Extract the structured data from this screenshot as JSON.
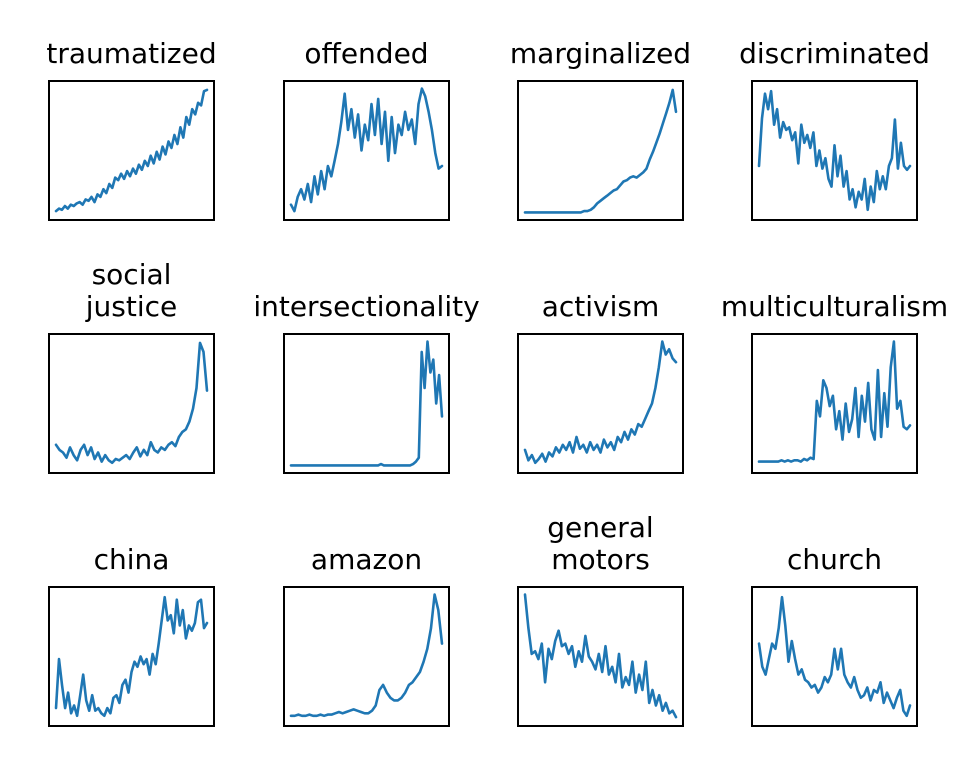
{
  "line_color": "#1f77b4",
  "chart_data": [
    {
      "type": "line",
      "title": [
        "traumatized"
      ],
      "ylim": [
        0,
        1
      ],
      "values": [
        0.03,
        0.05,
        0.04,
        0.07,
        0.05,
        0.08,
        0.07,
        0.09,
        0.1,
        0.08,
        0.12,
        0.11,
        0.14,
        0.1,
        0.16,
        0.14,
        0.2,
        0.17,
        0.24,
        0.21,
        0.29,
        0.27,
        0.32,
        0.28,
        0.34,
        0.3,
        0.36,
        0.32,
        0.39,
        0.35,
        0.42,
        0.38,
        0.46,
        0.4,
        0.49,
        0.43,
        0.53,
        0.47,
        0.57,
        0.52,
        0.62,
        0.55,
        0.68,
        0.6,
        0.76,
        0.7,
        0.82,
        0.78,
        0.87,
        0.85,
        0.96,
        0.97
      ]
    },
    {
      "type": "line",
      "title": [
        "offended"
      ],
      "ylim": [
        0,
        1
      ],
      "values": [
        0.08,
        0.03,
        0.14,
        0.2,
        0.12,
        0.24,
        0.1,
        0.3,
        0.16,
        0.34,
        0.2,
        0.38,
        0.3,
        0.42,
        0.55,
        0.72,
        0.94,
        0.66,
        0.82,
        0.6,
        0.78,
        0.5,
        0.7,
        0.58,
        0.86,
        0.62,
        0.9,
        0.55,
        0.8,
        0.42,
        0.76,
        0.48,
        0.7,
        0.62,
        0.8,
        0.66,
        0.74,
        0.55,
        0.86,
        0.98,
        0.92,
        0.8,
        0.66,
        0.48,
        0.36,
        0.38
      ]
    },
    {
      "type": "line",
      "title": [
        "marginalized"
      ],
      "ylim": [
        0,
        1
      ],
      "values": [
        0.02,
        0.02,
        0.02,
        0.02,
        0.02,
        0.02,
        0.02,
        0.02,
        0.02,
        0.02,
        0.02,
        0.02,
        0.02,
        0.02,
        0.02,
        0.02,
        0.02,
        0.02,
        0.03,
        0.03,
        0.04,
        0.06,
        0.09,
        0.11,
        0.13,
        0.15,
        0.17,
        0.19,
        0.2,
        0.23,
        0.26,
        0.27,
        0.29,
        0.3,
        0.29,
        0.31,
        0.33,
        0.36,
        0.43,
        0.49,
        0.56,
        0.63,
        0.71,
        0.79,
        0.87,
        0.97,
        0.8
      ]
    },
    {
      "type": "line",
      "title": [
        "discriminated"
      ],
      "ylim": [
        0,
        1
      ],
      "values": [
        0.38,
        0.75,
        0.94,
        0.82,
        0.96,
        0.7,
        0.82,
        0.6,
        0.72,
        0.66,
        0.68,
        0.58,
        0.64,
        0.4,
        0.7,
        0.56,
        0.62,
        0.52,
        0.64,
        0.38,
        0.5,
        0.36,
        0.44,
        0.28,
        0.22,
        0.54,
        0.3,
        0.46,
        0.22,
        0.34,
        0.12,
        0.2,
        0.06,
        0.18,
        0.12,
        0.28,
        0.04,
        0.22,
        0.1,
        0.34,
        0.2,
        0.3,
        0.2,
        0.38,
        0.44,
        0.74,
        0.36,
        0.56,
        0.38,
        0.35,
        0.38
      ]
    },
    {
      "type": "line",
      "title": [
        "social",
        "justice"
      ],
      "ylim": [
        0,
        1
      ],
      "values": [
        0.18,
        0.14,
        0.12,
        0.08,
        0.16,
        0.1,
        0.06,
        0.14,
        0.18,
        0.1,
        0.16,
        0.07,
        0.12,
        0.05,
        0.1,
        0.06,
        0.04,
        0.07,
        0.06,
        0.08,
        0.1,
        0.07,
        0.12,
        0.16,
        0.09,
        0.14,
        0.1,
        0.2,
        0.14,
        0.12,
        0.16,
        0.14,
        0.18,
        0.2,
        0.17,
        0.24,
        0.28,
        0.3,
        0.36,
        0.46,
        0.62,
        0.97,
        0.9,
        0.6
      ]
    },
    {
      "type": "line",
      "title": [
        "intersectionality"
      ],
      "ylim": [
        0,
        1
      ],
      "values": [
        0.02,
        0.02,
        0.02,
        0.02,
        0.02,
        0.02,
        0.02,
        0.02,
        0.02,
        0.02,
        0.02,
        0.02,
        0.02,
        0.02,
        0.02,
        0.02,
        0.02,
        0.02,
        0.02,
        0.02,
        0.02,
        0.02,
        0.02,
        0.02,
        0.02,
        0.02,
        0.02,
        0.02,
        0.02,
        0.02,
        0.02,
        0.03,
        0.02,
        0.02,
        0.02,
        0.02,
        0.02,
        0.02,
        0.02,
        0.02,
        0.02,
        0.02,
        0.03,
        0.05,
        0.08,
        0.9,
        0.62,
        0.98,
        0.74,
        0.84,
        0.5,
        0.72,
        0.4
      ]
    },
    {
      "type": "line",
      "title": [
        "activism"
      ],
      "ylim": [
        0,
        1
      ],
      "values": [
        0.14,
        0.06,
        0.1,
        0.04,
        0.07,
        0.11,
        0.05,
        0.12,
        0.09,
        0.16,
        0.12,
        0.18,
        0.14,
        0.2,
        0.12,
        0.24,
        0.15,
        0.18,
        0.12,
        0.2,
        0.14,
        0.18,
        0.12,
        0.22,
        0.16,
        0.2,
        0.14,
        0.24,
        0.2,
        0.28,
        0.22,
        0.3,
        0.26,
        0.34,
        0.32,
        0.38,
        0.44,
        0.5,
        0.62,
        0.78,
        0.98,
        0.88,
        0.92,
        0.85,
        0.82
      ]
    },
    {
      "type": "line",
      "title": [
        "multiculturalism"
      ],
      "ylim": [
        0,
        1
      ],
      "values": [
        0.05,
        0.05,
        0.05,
        0.05,
        0.05,
        0.05,
        0.05,
        0.06,
        0.05,
        0.06,
        0.05,
        0.06,
        0.06,
        0.05,
        0.07,
        0.06,
        0.08,
        0.07,
        0.52,
        0.4,
        0.68,
        0.62,
        0.48,
        0.56,
        0.3,
        0.44,
        0.22,
        0.5,
        0.28,
        0.38,
        0.62,
        0.24,
        0.56,
        0.36,
        0.66,
        0.3,
        0.22,
        0.76,
        0.24,
        0.58,
        0.32,
        0.78,
        0.98,
        0.46,
        0.52,
        0.32,
        0.3,
        0.33
      ]
    },
    {
      "type": "line",
      "title": [
        "china"
      ],
      "ylim": [
        0,
        1
      ],
      "values": [
        0.1,
        0.48,
        0.28,
        0.1,
        0.22,
        0.06,
        0.12,
        0.04,
        0.2,
        0.36,
        0.16,
        0.08,
        0.2,
        0.08,
        0.1,
        0.06,
        0.04,
        0.1,
        0.06,
        0.18,
        0.2,
        0.14,
        0.28,
        0.32,
        0.22,
        0.38,
        0.46,
        0.42,
        0.5,
        0.44,
        0.48,
        0.36,
        0.52,
        0.44,
        0.6,
        0.78,
        0.96,
        0.78,
        0.82,
        0.68,
        0.94,
        0.74,
        0.86,
        0.64,
        0.74,
        0.7,
        0.76,
        0.92,
        0.94,
        0.72,
        0.76
      ]
    },
    {
      "type": "line",
      "title": [
        "amazon"
      ],
      "ylim": [
        0,
        1
      ],
      "values": [
        0.04,
        0.04,
        0.05,
        0.04,
        0.04,
        0.05,
        0.04,
        0.04,
        0.05,
        0.04,
        0.05,
        0.05,
        0.06,
        0.07,
        0.06,
        0.07,
        0.08,
        0.09,
        0.08,
        0.07,
        0.06,
        0.06,
        0.08,
        0.12,
        0.24,
        0.28,
        0.22,
        0.18,
        0.16,
        0.16,
        0.18,
        0.22,
        0.28,
        0.3,
        0.34,
        0.38,
        0.46,
        0.56,
        0.72,
        0.98,
        0.86,
        0.6
      ]
    },
    {
      "type": "line",
      "title": [
        "general",
        "motors"
      ],
      "ylim": [
        0,
        1
      ],
      "values": [
        0.98,
        0.72,
        0.52,
        0.54,
        0.48,
        0.6,
        0.3,
        0.56,
        0.48,
        0.62,
        0.7,
        0.58,
        0.6,
        0.52,
        0.58,
        0.42,
        0.54,
        0.46,
        0.66,
        0.5,
        0.46,
        0.4,
        0.52,
        0.38,
        0.58,
        0.36,
        0.42,
        0.3,
        0.52,
        0.26,
        0.34,
        0.28,
        0.46,
        0.22,
        0.36,
        0.24,
        0.46,
        0.14,
        0.24,
        0.12,
        0.2,
        0.08,
        0.14,
        0.06,
        0.08,
        0.03
      ]
    },
    {
      "type": "line",
      "title": [
        "church"
      ],
      "ylim": [
        0,
        1
      ],
      "values": [
        0.6,
        0.42,
        0.36,
        0.48,
        0.6,
        0.56,
        0.72,
        0.96,
        0.74,
        0.46,
        0.62,
        0.48,
        0.36,
        0.4,
        0.32,
        0.3,
        0.26,
        0.28,
        0.22,
        0.26,
        0.34,
        0.3,
        0.36,
        0.56,
        0.4,
        0.56,
        0.36,
        0.3,
        0.26,
        0.34,
        0.24,
        0.18,
        0.2,
        0.26,
        0.16,
        0.24,
        0.22,
        0.3,
        0.14,
        0.22,
        0.16,
        0.1,
        0.18,
        0.24,
        0.08,
        0.04,
        0.12
      ]
    }
  ]
}
